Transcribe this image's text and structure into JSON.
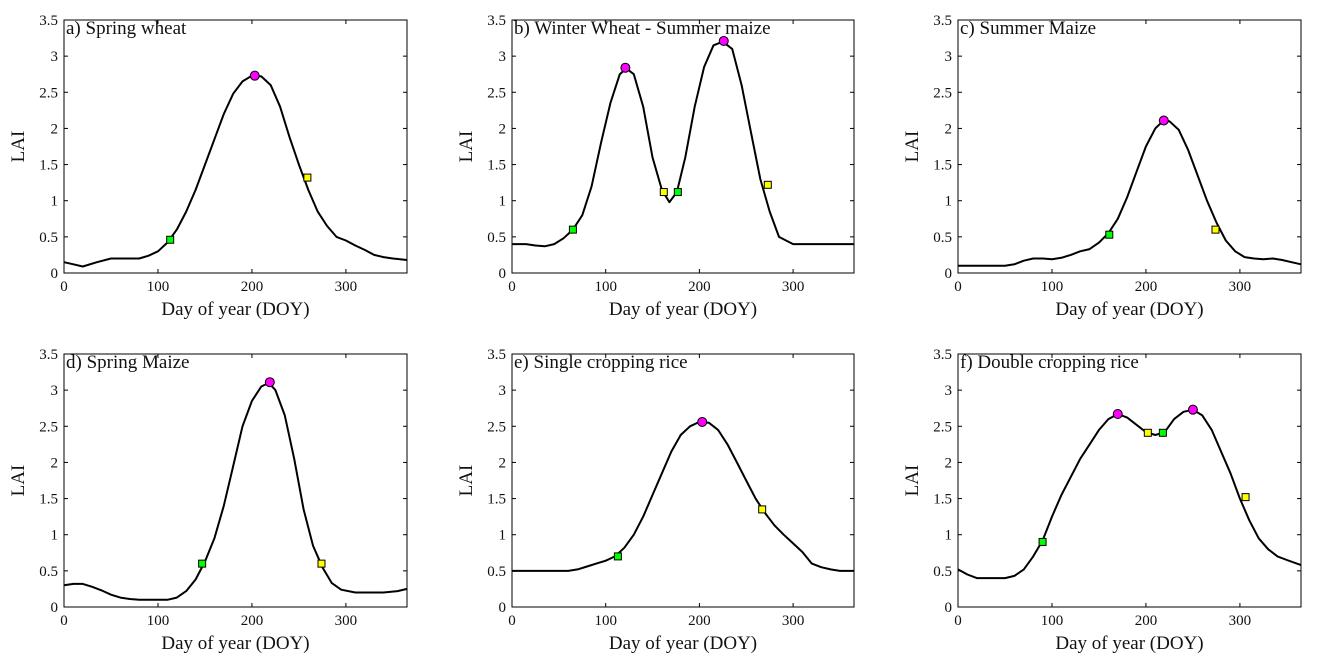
{
  "chart_data": [
    {
      "type": "line",
      "title": "a) Spring wheat",
      "xlabel": "Day of year (DOY)",
      "ylabel": "LAI",
      "xlim": [
        0,
        365
      ],
      "ylim": [
        0,
        3.5
      ],
      "xticks": [
        0,
        100,
        200,
        300
      ],
      "yticks": [
        0,
        0.5,
        1,
        1.5,
        2,
        2.5,
        3,
        3.5
      ],
      "grid": false,
      "series": [
        {
          "x": [
            0,
            10,
            20,
            35,
            50,
            65,
            80,
            90,
            100,
            110,
            120,
            130,
            140,
            150,
            160,
            170,
            180,
            190,
            200,
            210,
            220,
            230,
            240,
            250,
            260,
            270,
            280,
            290,
            300,
            310,
            320,
            330,
            340,
            350,
            365
          ],
          "y": [
            0.15,
            0.12,
            0.09,
            0.15,
            0.2,
            0.2,
            0.2,
            0.24,
            0.3,
            0.42,
            0.6,
            0.85,
            1.15,
            1.5,
            1.85,
            2.2,
            2.48,
            2.65,
            2.73,
            2.72,
            2.6,
            2.3,
            1.88,
            1.5,
            1.15,
            0.85,
            0.65,
            0.5,
            0.45,
            0.38,
            0.32,
            0.25,
            0.22,
            0.2,
            0.18
          ]
        }
      ],
      "markers": [
        {
          "kind": "start",
          "x": 113,
          "y": 0.46,
          "color": "#00ff00",
          "shape": "square"
        },
        {
          "kind": "peak",
          "x": 203,
          "y": 2.73,
          "color": "#ff00ff",
          "shape": "circle"
        },
        {
          "kind": "end",
          "x": 259,
          "y": 1.32,
          "color": "#ffff00",
          "shape": "square"
        }
      ]
    },
    {
      "type": "line",
      "title": "b) Winter Wheat - Summer maize",
      "xlabel": "Day of year (DOY)",
      "ylabel": "LAI",
      "xlim": [
        0,
        365
      ],
      "ylim": [
        0,
        3.5
      ],
      "xticks": [
        0,
        100,
        200,
        300
      ],
      "yticks": [
        0,
        0.5,
        1,
        1.5,
        2,
        2.5,
        3,
        3.5
      ],
      "grid": false,
      "series": [
        {
          "x": [
            0,
            15,
            25,
            35,
            45,
            55,
            65,
            75,
            85,
            95,
            105,
            115,
            122,
            130,
            140,
            150,
            160,
            168,
            176,
            185,
            195,
            205,
            215,
            225,
            235,
            245,
            255,
            265,
            275,
            285,
            300,
            320,
            340,
            365
          ],
          "y": [
            0.4,
            0.4,
            0.38,
            0.37,
            0.4,
            0.48,
            0.6,
            0.8,
            1.2,
            1.8,
            2.35,
            2.75,
            2.83,
            2.75,
            2.3,
            1.6,
            1.15,
            0.98,
            1.12,
            1.6,
            2.3,
            2.85,
            3.15,
            3.2,
            3.1,
            2.6,
            1.95,
            1.3,
            0.85,
            0.5,
            0.4,
            0.4,
            0.4,
            0.4
          ]
        }
      ],
      "markers": [
        {
          "kind": "start",
          "x": 65,
          "y": 0.6,
          "color": "#00ff00",
          "shape": "square"
        },
        {
          "kind": "peak",
          "x": 121,
          "y": 2.84,
          "color": "#ff00ff",
          "shape": "circle"
        },
        {
          "kind": "end",
          "x": 162,
          "y": 1.12,
          "color": "#ffff00",
          "shape": "square"
        },
        {
          "kind": "start",
          "x": 177,
          "y": 1.12,
          "color": "#00ff00",
          "shape": "square"
        },
        {
          "kind": "peak",
          "x": 226,
          "y": 3.21,
          "color": "#ff00ff",
          "shape": "circle"
        },
        {
          "kind": "end",
          "x": 273,
          "y": 1.22,
          "color": "#ffff00",
          "shape": "square"
        }
      ]
    },
    {
      "type": "line",
      "title": "c) Summer Maize",
      "xlabel": "Day of year (DOY)",
      "ylabel": "LAI",
      "xlim": [
        0,
        365
      ],
      "ylim": [
        0,
        3.5
      ],
      "xticks": [
        0,
        100,
        200,
        300
      ],
      "yticks": [
        0,
        0.5,
        1,
        1.5,
        2,
        2.5,
        3,
        3.5
      ],
      "grid": false,
      "series": [
        {
          "x": [
            0,
            20,
            40,
            50,
            60,
            70,
            80,
            90,
            100,
            110,
            120,
            130,
            140,
            150,
            160,
            170,
            180,
            190,
            200,
            210,
            218,
            225,
            235,
            245,
            255,
            265,
            275,
            285,
            295,
            305,
            315,
            325,
            335,
            345,
            355,
            365
          ],
          "y": [
            0.1,
            0.1,
            0.1,
            0.1,
            0.12,
            0.17,
            0.2,
            0.2,
            0.19,
            0.21,
            0.25,
            0.3,
            0.33,
            0.42,
            0.55,
            0.75,
            1.05,
            1.4,
            1.75,
            2.0,
            2.1,
            2.1,
            1.98,
            1.7,
            1.35,
            1.0,
            0.7,
            0.45,
            0.3,
            0.22,
            0.2,
            0.19,
            0.2,
            0.18,
            0.15,
            0.12
          ]
        }
      ],
      "markers": [
        {
          "kind": "start",
          "x": 161,
          "y": 0.53,
          "color": "#00ff00",
          "shape": "square"
        },
        {
          "kind": "peak",
          "x": 219,
          "y": 2.11,
          "color": "#ff00ff",
          "shape": "circle"
        },
        {
          "kind": "end",
          "x": 274,
          "y": 0.6,
          "color": "#ffff00",
          "shape": "square"
        }
      ]
    },
    {
      "type": "line",
      "title": "d) Spring Maize",
      "xlabel": "Day of year (DOY)",
      "ylabel": "LAI",
      "xlim": [
        0,
        365
      ],
      "ylim": [
        0,
        3.5
      ],
      "xticks": [
        0,
        100,
        200,
        300
      ],
      "yticks": [
        0,
        0.5,
        1,
        1.5,
        2,
        2.5,
        3,
        3.5
      ],
      "grid": false,
      "series": [
        {
          "x": [
            0,
            10,
            20,
            30,
            40,
            50,
            60,
            70,
            80,
            90,
            100,
            110,
            120,
            130,
            140,
            150,
            160,
            170,
            180,
            190,
            200,
            210,
            218,
            225,
            235,
            245,
            255,
            265,
            275,
            285,
            295,
            310,
            325,
            340,
            355,
            365
          ],
          "y": [
            0.3,
            0.32,
            0.32,
            0.28,
            0.23,
            0.17,
            0.13,
            0.11,
            0.1,
            0.1,
            0.1,
            0.1,
            0.13,
            0.22,
            0.38,
            0.63,
            0.95,
            1.4,
            1.95,
            2.5,
            2.85,
            3.05,
            3.1,
            3.0,
            2.65,
            2.05,
            1.35,
            0.85,
            0.55,
            0.33,
            0.24,
            0.2,
            0.2,
            0.2,
            0.22,
            0.25
          ]
        }
      ],
      "markers": [
        {
          "kind": "start",
          "x": 147,
          "y": 0.6,
          "color": "#00ff00",
          "shape": "square"
        },
        {
          "kind": "peak",
          "x": 219,
          "y": 3.11,
          "color": "#ff00ff",
          "shape": "circle"
        },
        {
          "kind": "end",
          "x": 274,
          "y": 0.6,
          "color": "#ffff00",
          "shape": "square"
        }
      ]
    },
    {
      "type": "line",
      "title": "e) Single cropping rice",
      "xlabel": "Day of year (DOY)",
      "ylabel": "LAI",
      "xlim": [
        0,
        365
      ],
      "ylim": [
        0,
        3.5
      ],
      "xticks": [
        0,
        100,
        200,
        300
      ],
      "yticks": [
        0,
        0.5,
        1,
        1.5,
        2,
        2.5,
        3,
        3.5
      ],
      "grid": false,
      "series": [
        {
          "x": [
            0,
            20,
            40,
            60,
            70,
            80,
            90,
            100,
            110,
            120,
            130,
            140,
            150,
            160,
            170,
            180,
            190,
            200,
            210,
            220,
            230,
            240,
            250,
            260,
            270,
            280,
            290,
            300,
            310,
            320,
            330,
            340,
            350,
            365
          ],
          "y": [
            0.5,
            0.5,
            0.5,
            0.5,
            0.52,
            0.56,
            0.6,
            0.64,
            0.7,
            0.82,
            1.0,
            1.25,
            1.55,
            1.85,
            2.15,
            2.38,
            2.5,
            2.56,
            2.55,
            2.45,
            2.25,
            2.0,
            1.75,
            1.5,
            1.3,
            1.13,
            1.0,
            0.88,
            0.76,
            0.6,
            0.55,
            0.52,
            0.5,
            0.5
          ]
        }
      ],
      "markers": [
        {
          "kind": "start",
          "x": 113,
          "y": 0.7,
          "color": "#00ff00",
          "shape": "square"
        },
        {
          "kind": "peak",
          "x": 203,
          "y": 2.56,
          "color": "#ff00ff",
          "shape": "circle"
        },
        {
          "kind": "end",
          "x": 267,
          "y": 1.35,
          "color": "#ffff00",
          "shape": "square"
        }
      ]
    },
    {
      "type": "line",
      "title": "f) Double cropping rice",
      "xlabel": "Day of year (DOY)",
      "ylabel": "LAI",
      "xlim": [
        0,
        365
      ],
      "ylim": [
        0,
        3.5
      ],
      "xticks": [
        0,
        100,
        200,
        300
      ],
      "yticks": [
        0,
        0.5,
        1,
        1.5,
        2,
        2.5,
        3,
        3.5
      ],
      "grid": false,
      "series": [
        {
          "x": [
            0,
            10,
            20,
            30,
            40,
            50,
            60,
            70,
            80,
            90,
            100,
            110,
            120,
            130,
            140,
            150,
            160,
            170,
            180,
            190,
            200,
            210,
            220,
            230,
            240,
            250,
            260,
            270,
            280,
            290,
            300,
            310,
            320,
            330,
            340,
            350,
            365
          ],
          "y": [
            0.52,
            0.45,
            0.4,
            0.4,
            0.4,
            0.4,
            0.43,
            0.52,
            0.7,
            0.92,
            1.25,
            1.55,
            1.8,
            2.05,
            2.25,
            2.45,
            2.6,
            2.67,
            2.62,
            2.52,
            2.42,
            2.38,
            2.42,
            2.6,
            2.7,
            2.73,
            2.65,
            2.45,
            2.15,
            1.85,
            1.5,
            1.2,
            0.95,
            0.8,
            0.7,
            0.65,
            0.58
          ]
        }
      ],
      "markers": [
        {
          "kind": "start",
          "x": 90,
          "y": 0.9,
          "color": "#00ff00",
          "shape": "square"
        },
        {
          "kind": "peak",
          "x": 170,
          "y": 2.67,
          "color": "#ff00ff",
          "shape": "circle"
        },
        {
          "kind": "end",
          "x": 202,
          "y": 2.41,
          "color": "#ffff00",
          "shape": "square"
        },
        {
          "kind": "start",
          "x": 218,
          "y": 2.41,
          "color": "#00ff00",
          "shape": "square"
        },
        {
          "kind": "peak",
          "x": 250,
          "y": 2.73,
          "color": "#ff00ff",
          "shape": "circle"
        },
        {
          "kind": "end",
          "x": 306,
          "y": 1.52,
          "color": "#ffff00",
          "shape": "square"
        }
      ]
    }
  ]
}
